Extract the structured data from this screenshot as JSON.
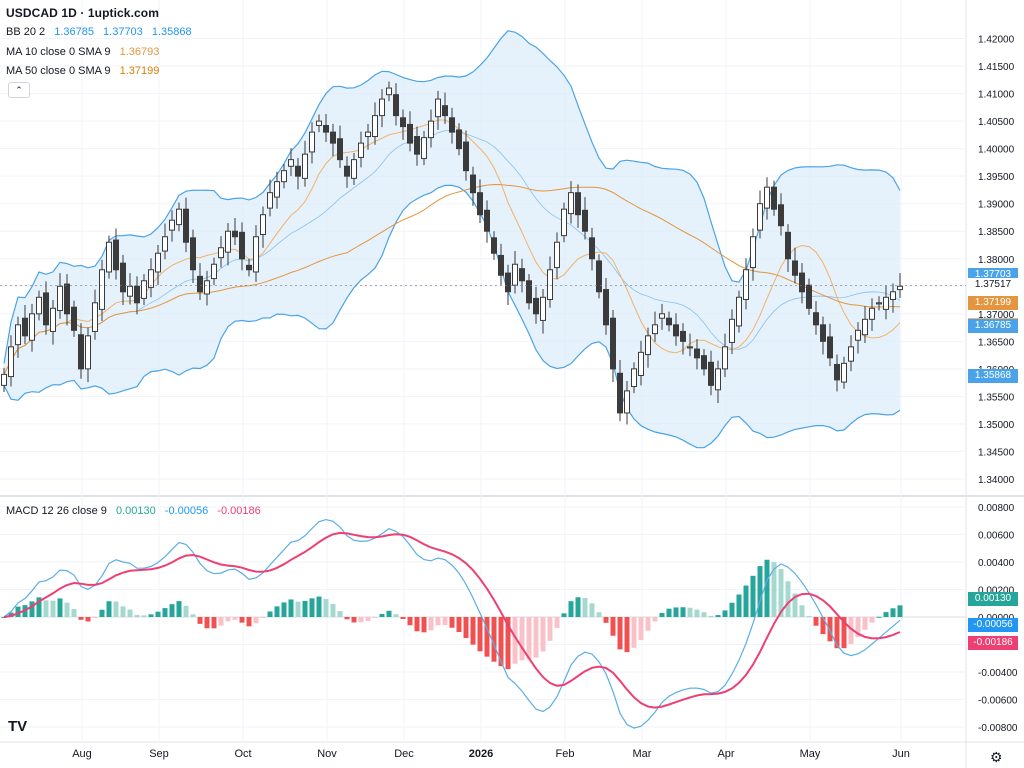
{
  "header": {
    "title": "USDCAD 1D · 1uptick.com",
    "bb": {
      "label": "BB 20 2",
      "v1": "1.36785",
      "v2": "1.37703",
      "v3": "1.35868"
    },
    "ma10": {
      "label": "MA 10 close 0 SMA 9",
      "value": "1.36793"
    },
    "ma50": {
      "label": "MA 50 close 0 SMA 9",
      "value": "1.37199"
    },
    "macd": {
      "label": "MACD 12 26 close 9",
      "v1": "0.00130",
      "v2": "-0.00056",
      "v3": "-0.00186"
    }
  },
  "colors": {
    "bb_line": "#4aa3e8",
    "bb_fill": "#dcecfa",
    "ma10": "#f2b269",
    "ma50": "#e3963f",
    "candle": "#3b3b3b",
    "macd_line": "#5aaee6",
    "signal_line": "#ee3f72",
    "hist_pos_strong": "#26a69a",
    "hist_pos_weak": "#a5d9cf",
    "hist_neg_strong": "#f05050",
    "hist_neg_weak": "#f8c2c8"
  },
  "badges": {
    "price": [
      {
        "text": "1.37703",
        "color": "#4aa3e8"
      },
      {
        "text": "1.37517",
        "color": "plain"
      },
      {
        "text": "1.37199",
        "color": "#e3963f"
      },
      {
        "text": "1.36793",
        "color": "#f2b269"
      },
      {
        "text": "1.36785",
        "color": "#4aa3e8"
      },
      {
        "text": "1.35868",
        "color": "#4aa3e8"
      }
    ],
    "macd": [
      {
        "text": "0.00130",
        "color": "#26a69a"
      },
      {
        "text": "-0.00056",
        "color": "#2196f3"
      },
      {
        "text": "-0.00186",
        "color": "#ee3f72"
      }
    ]
  },
  "icons": {
    "collapse": "chevron-up-icon",
    "logo": "tradingview-logo-icon",
    "settings": "gear-icon"
  },
  "logo_text": "TV",
  "settings_glyph": "⚙",
  "collapse_glyph": "⌃",
  "chart_data": [
    {
      "type": "candlestick",
      "title": "USDCAD 1D · 1uptick.com",
      "ylim": [
        1.338,
        1.423
      ],
      "y_ticks": [
        "1.42000",
        "1.41500",
        "1.41000",
        "1.40500",
        "1.40000",
        "1.39500",
        "1.39000",
        "1.38500",
        "1.38000",
        "1.37500",
        "1.37000",
        "1.36500",
        "1.36000",
        "1.35500",
        "1.35000",
        "1.34500",
        "1.34000"
      ],
      "x_ticks": [
        "Aug",
        "Sep",
        "Oct",
        "Nov",
        "Dec",
        "2026",
        "Feb",
        "Mar",
        "Apr",
        "May",
        "Jun"
      ],
      "close": [
        1.359,
        1.364,
        1.368,
        1.366,
        1.37,
        1.373,
        1.368,
        1.371,
        1.375,
        1.37,
        1.367,
        1.36,
        1.366,
        1.372,
        1.378,
        1.383,
        1.378,
        1.374,
        1.375,
        1.372,
        1.376,
        1.378,
        1.381,
        1.384,
        1.387,
        1.389,
        1.383,
        1.378,
        1.374,
        1.376,
        1.379,
        1.382,
        1.385,
        1.384,
        1.38,
        1.378,
        1.384,
        1.388,
        1.392,
        1.394,
        1.396,
        1.398,
        1.395,
        1.399,
        1.403,
        1.405,
        1.403,
        1.401,
        1.398,
        1.395,
        1.398,
        1.401,
        1.403,
        1.406,
        1.409,
        1.411,
        1.406,
        1.404,
        1.401,
        1.399,
        1.402,
        1.405,
        1.409,
        1.406,
        1.403,
        1.4,
        1.396,
        1.392,
        1.388,
        1.385,
        1.381,
        1.377,
        1.374,
        1.379,
        1.376,
        1.372,
        1.37,
        1.373,
        1.378,
        1.383,
        1.389,
        1.392,
        1.388,
        1.385,
        1.38,
        1.374,
        1.368,
        1.36,
        1.352,
        1.356,
        1.36,
        1.363,
        1.366,
        1.368,
        1.37,
        1.368,
        1.366,
        1.365,
        1.364,
        1.362,
        1.36,
        1.357,
        1.36,
        1.364,
        1.369,
        1.373,
        1.378,
        1.384,
        1.39,
        1.393,
        1.389,
        1.386,
        1.38,
        1.377,
        1.374,
        1.371,
        1.368,
        1.365,
        1.362,
        1.358,
        1.361,
        1.364,
        1.367,
        1.369,
        1.371,
        1.372,
        1.373,
        1.374,
        1.375
      ],
      "ma10_end": 1.36793,
      "ma50_end": 1.37199,
      "bb_upper_end": 1.37703,
      "bb_middle_end": 1.36785,
      "bb_lower_end": 1.35868,
      "last_price": 1.37517
    },
    {
      "type": "macd",
      "title": "MACD 12 26 close 9",
      "ylim": [
        -0.0085,
        0.0085
      ],
      "y_ticks": [
        "0.00800",
        "0.00600",
        "0.00400",
        "0.00200",
        "0.00000",
        "-0.00200",
        "-0.00400",
        "-0.00600",
        "-0.00800"
      ],
      "macd_end": -0.00056,
      "signal_end": -0.00186,
      "hist_end": 0.0013
    }
  ]
}
